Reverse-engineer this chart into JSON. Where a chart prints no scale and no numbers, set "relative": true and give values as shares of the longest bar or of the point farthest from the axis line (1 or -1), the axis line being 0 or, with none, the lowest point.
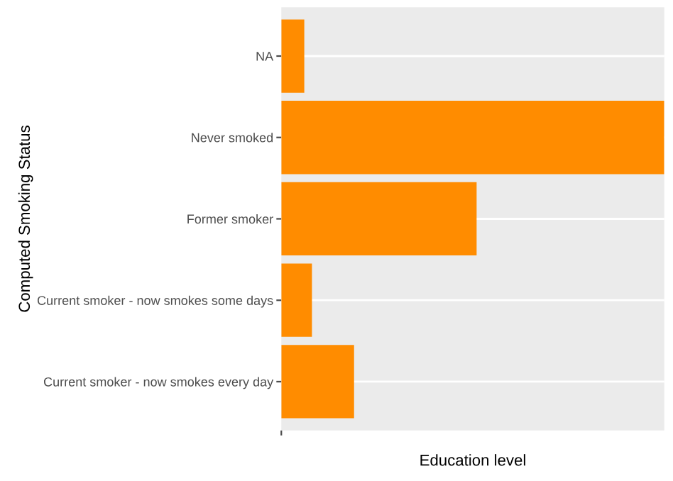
{
  "chart_data": {
    "type": "bar",
    "orientation": "horizontal",
    "relative": true,
    "categories": [
      "NA",
      "Never smoked",
      "Former smoker",
      "Current smoker - now smokes some days",
      "Current smoker - now smokes every day"
    ],
    "values": [
      0.06,
      1,
      0.51,
      0.08,
      0.19
    ],
    "color": "#ff8c00",
    "xlabel": "Education level",
    "ylabel": "Computed Smoking Status",
    "grid": "y"
  }
}
